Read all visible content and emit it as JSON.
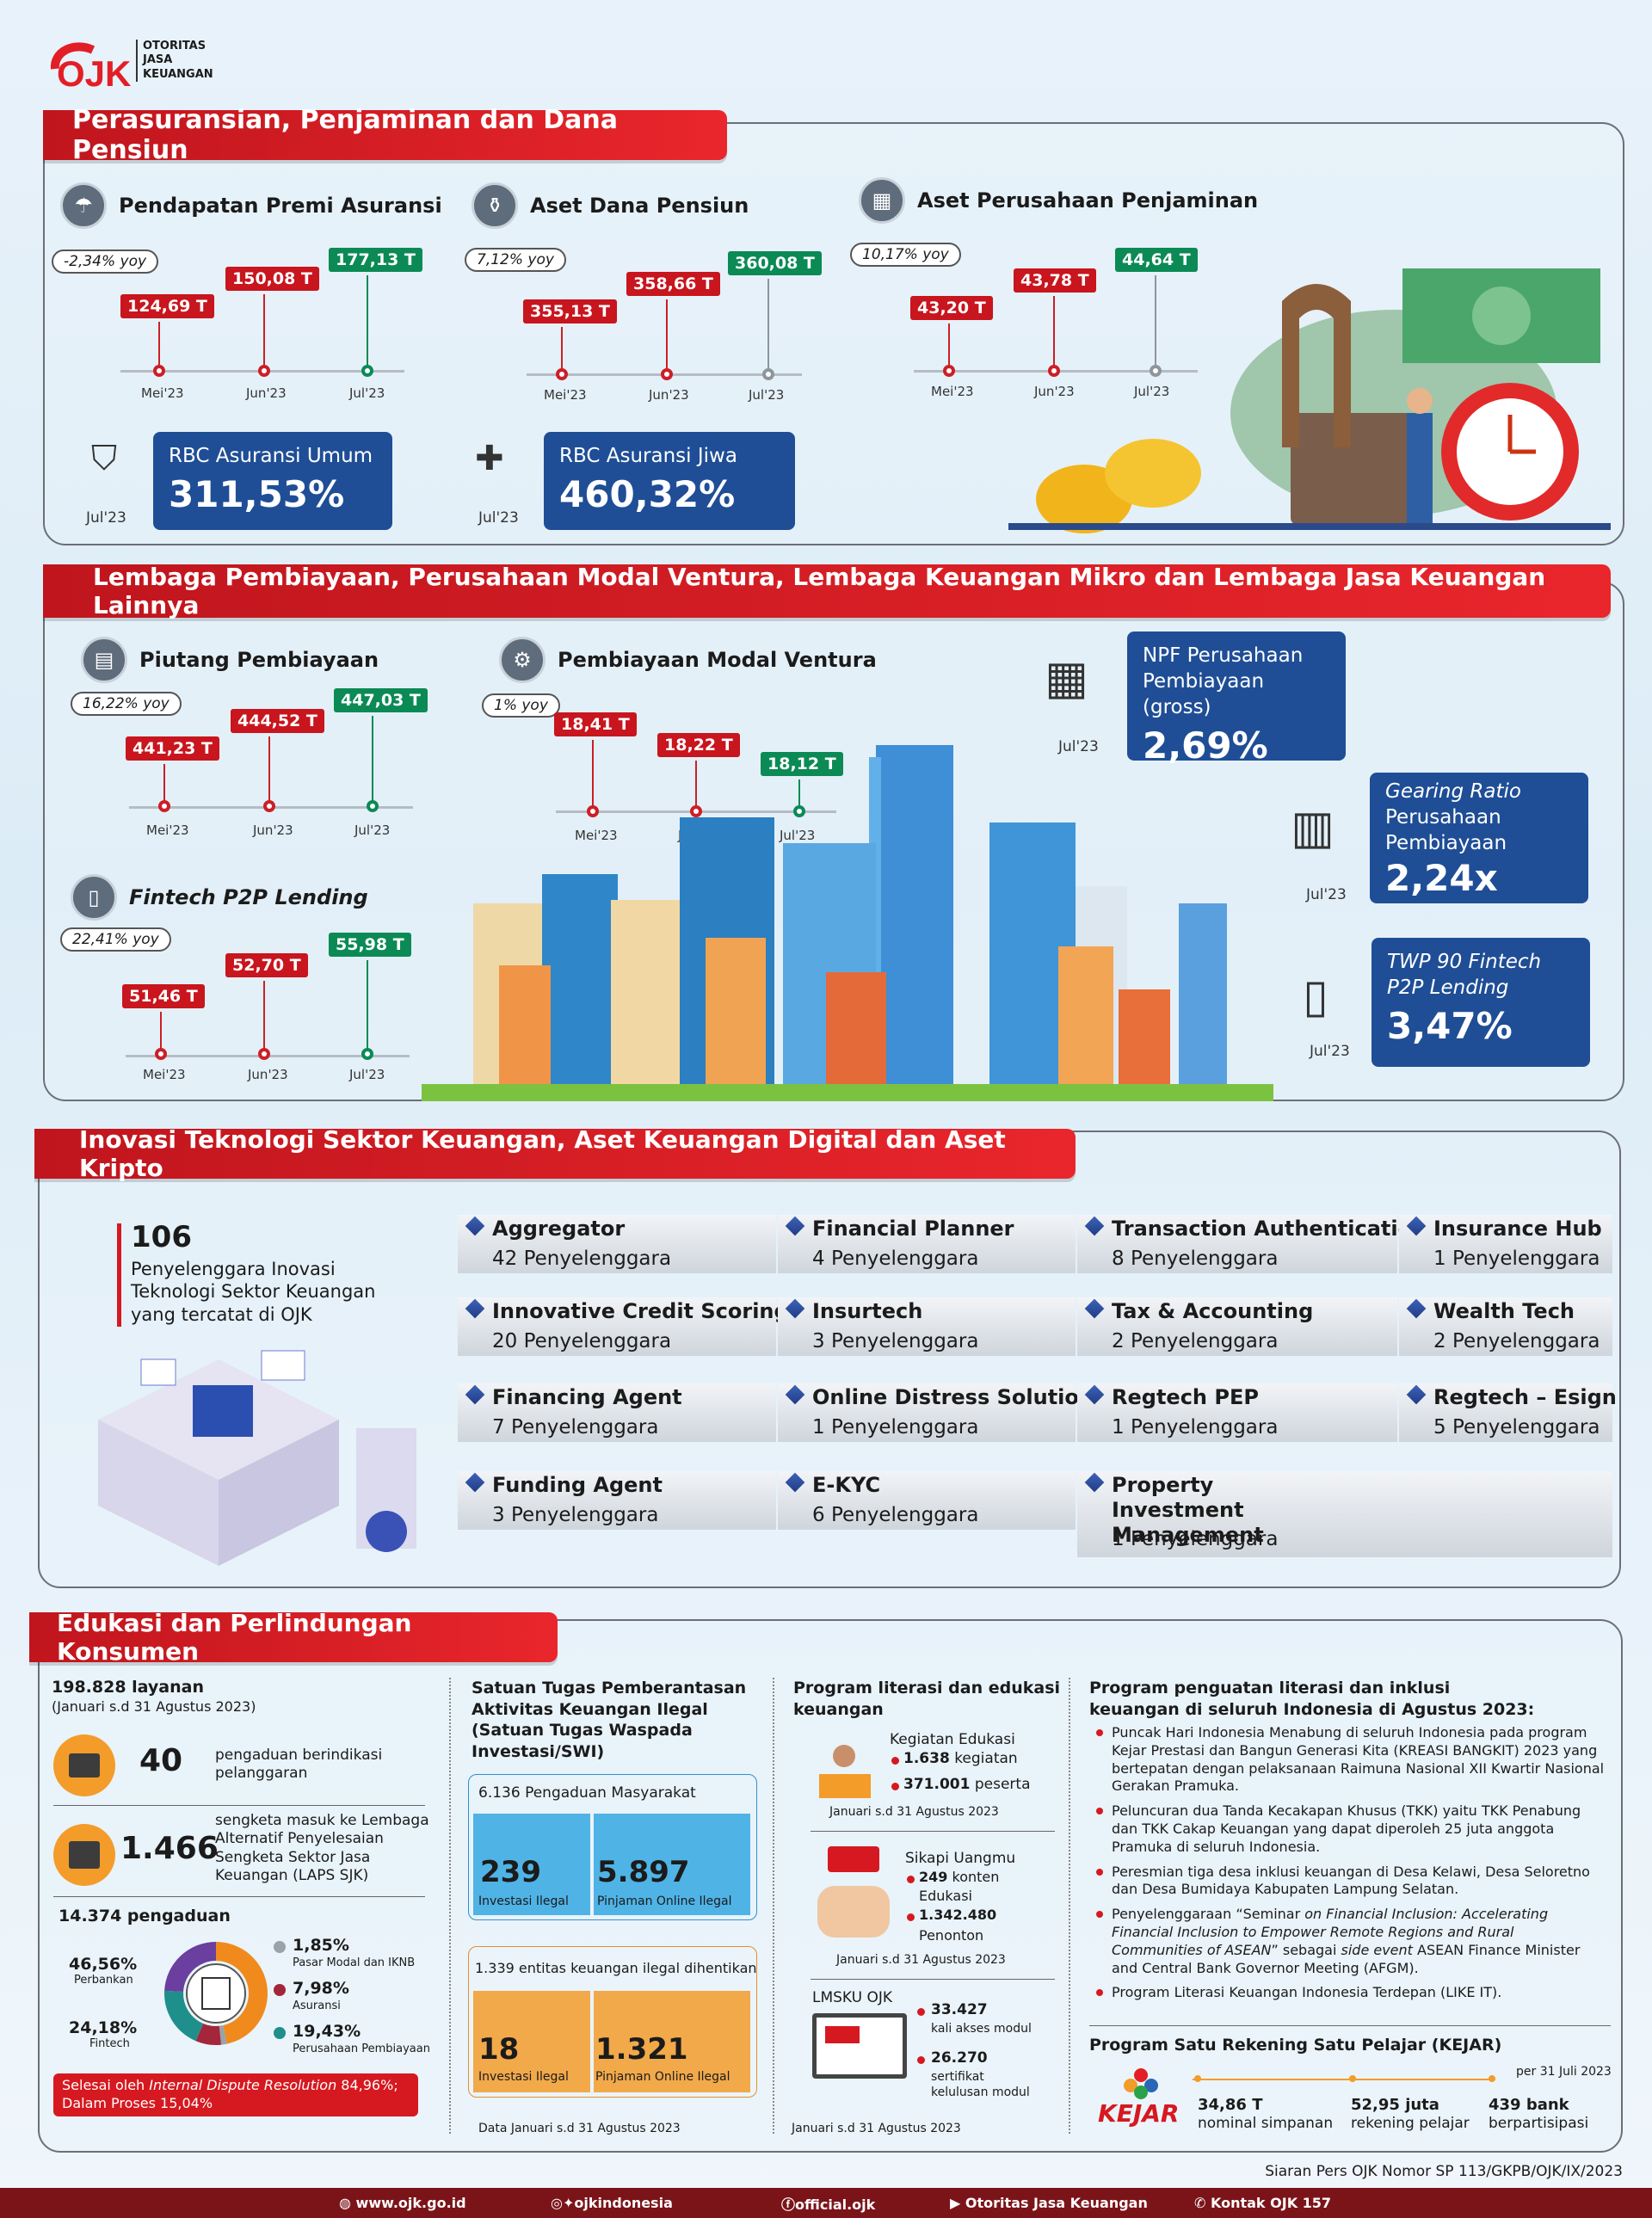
{
  "brand": {
    "logo": "OJK",
    "lines": [
      "OTORITAS",
      "JASA",
      "KEUANGAN"
    ]
  },
  "s1": {
    "title": "Perasuransian, Penjaminan dan Dana Pensiun",
    "premi": {
      "title": "Pendapatan Premi Asuransi",
      "yoy": "-2,34% yoy",
      "vals": [
        "124,69 T",
        "150,08 T",
        "177,13 T"
      ]
    },
    "dapen": {
      "title": "Aset Dana Pensiun",
      "yoy": "7,12% yoy",
      "vals": [
        "355,13 T",
        "358,66 T",
        "360,08 T"
      ]
    },
    "penjamin": {
      "title": "Aset Perusahaan Penjaminan",
      "yoy": "10,17% yoy",
      "vals": [
        "43,20 T",
        "43,78 T",
        "44,64 T"
      ]
    },
    "months": [
      "Mei'23",
      "Jun'23",
      "Jul'23"
    ],
    "rbc_umum": {
      "label": "RBC Asuransi Umum",
      "value": "311,53%",
      "period": "Jul'23"
    },
    "rbc_jiwa": {
      "label": "RBC Asuransi Jiwa",
      "value": "460,32%",
      "period": "Jul'23"
    }
  },
  "s2": {
    "title": "Lembaga Pembiayaan, Perusahaan Modal Ventura, Lembaga Keuangan Mikro dan Lembaga Jasa Keuangan Lainnya",
    "piutang": {
      "title": "Piutang Pembiayaan",
      "yoy": "16,22% yoy",
      "vals": [
        "441,23 T",
        "444,52 T",
        "447,03 T"
      ]
    },
    "ventura": {
      "title": "Pembiayaan Modal Ventura",
      "yoy": "1% yoy",
      "vals": [
        "18,41 T",
        "18,22 T",
        "18,12 T"
      ]
    },
    "p2p": {
      "title": "Fintech P2P Lending",
      "yoy": "22,41% yoy",
      "vals": [
        "51,46 T",
        "52,70 T",
        "55,98 T"
      ]
    },
    "npf": {
      "l1": "NPF Perusahaan",
      "l2": "Pembiayaan (gross)",
      "value": "2,69%",
      "period": "Jul'23"
    },
    "gearing": {
      "l1": "Gearing Ratio",
      "l2": "Perusahaan",
      "l3": "Pembiayaan",
      "value": "2,24x",
      "period": "Jul'23"
    },
    "twp": {
      "l1": "TWP 90 Fintech",
      "l2": "P2P Lending",
      "value": "3,47%",
      "period": "Jul'23"
    }
  },
  "s3": {
    "title": "Inovasi Teknologi Sektor Keuangan, Aset Keuangan Digital dan Aset Kripto",
    "total": "106",
    "total_desc": [
      "Penyelenggara Inovasi",
      "Teknologi Sektor Keuangan",
      "yang tercatat di OJK"
    ],
    "items": [
      {
        "name": "Aggregator",
        "count": "42 Penyelenggara"
      },
      {
        "name": "Financial Planner",
        "count": "4 Penyelenggara"
      },
      {
        "name": "Transaction Authentication",
        "count": "8 Penyelenggara"
      },
      {
        "name": "Insurance Hub",
        "count": "1 Penyelenggara"
      },
      {
        "name": "Innovative Credit Scoring",
        "count": "20 Penyelenggara"
      },
      {
        "name": "Insurtech",
        "count": "3 Penyelenggara"
      },
      {
        "name": "Tax & Accounting",
        "count": "2 Penyelenggara"
      },
      {
        "name": "Wealth Tech",
        "count": "2 Penyelenggara"
      },
      {
        "name": "Financing Agent",
        "count": "7 Penyelenggara"
      },
      {
        "name": "Online Distress Solution",
        "count": "1 Penyelenggara"
      },
      {
        "name": "Regtech PEP",
        "count": "1 Penyelenggara"
      },
      {
        "name": "Regtech – Esign",
        "count": "5 Penyelenggara"
      },
      {
        "name": "Funding Agent",
        "count": "3 Penyelenggara"
      },
      {
        "name": "E-KYC",
        "count": "6 Penyelenggara"
      },
      {
        "name": "Property Investment Management",
        "count": "1 Penyelenggara"
      }
    ]
  },
  "s4": {
    "title": "Edukasi dan Perlindungan Konsumen",
    "layanan": "198.828 layanan",
    "layanan_period": "(Januari s.d 31 Agustus 2023)",
    "c1": {
      "num": "40",
      "desc": "pengaduan berindikasi pelanggaran"
    },
    "c2": {
      "num": "1.466",
      "desc": "sengketa masuk ke Lembaga Alternatif Penyelesaian Sengketa Sektor Jasa Keuangan (LAPS SJK)"
    },
    "pengaduan": "14.374 pengaduan",
    "donut": [
      {
        "label": "Perbankan",
        "value": "46,56%",
        "color": "#f08a1c"
      },
      {
        "label": "Fintech",
        "value": "24,18%",
        "color": "#6a3fa0"
      },
      {
        "label": "Pasar Modal dan IKNB",
        "value": "1,85%",
        "color": "#9aa2aa"
      },
      {
        "label": "Asuransi",
        "value": "7,98%",
        "color": "#a3263a"
      },
      {
        "label": "Perusahaan Pembiayaan",
        "value": "19,43%",
        "color": "#1f8f8c"
      }
    ],
    "idr_a": "Selesai oleh ",
    "idr_b": "Internal Dispute Resolution",
    "idr_c": " 84,96%;",
    "idr_d": "Dalam Proses 15,04%",
    "swi": {
      "title": [
        "Satuan Tugas Pemberantasan",
        "Aktivitas Keuangan Ilegal",
        "(Satuan Tugas Waspada",
        "Investasi/SWI)"
      ],
      "pengaduan": "6.136 Pengaduan Masyarakat",
      "a1": {
        "num": "239",
        "lab": "Investasi Ilegal"
      },
      "a2": {
        "num": "5.897",
        "lab": "Pinjaman Online Ilegal"
      },
      "dihentikan": "1.339 entitas keuangan ilegal dihentikan",
      "b1": {
        "num": "18",
        "lab": "Investasi Ilegal"
      },
      "b2": {
        "num": "1.321",
        "lab": "Pinjaman Online Ilegal"
      },
      "note": "Data Januari s.d 31 Agustus 2023"
    },
    "lit": {
      "title": [
        "Program literasi dan edukasi",
        "keuangan"
      ],
      "kegiatan": "Kegiatan Edukasi",
      "k1": "1.638",
      "k1l": "kegiatan",
      "k2": "371.001",
      "k2l": "peserta",
      "kp": "Januari s.d 31 Agustus 2023",
      "sikapi": "Sikapi Uangmu",
      "s1": "249",
      "s1l": "konten",
      "s2": "Edukasi",
      "s3": "1.342.480",
      "s3l": "Penonton",
      "sp": "Januari s.d 31 Agustus 2023",
      "lmsku": "LMSKU OJK",
      "m1": "33.427",
      "m1l": "kali akses modul",
      "m2": "26.270",
      "m2l": "sertifikat",
      "m2l2": "kelulusan modul",
      "mp": "Januari s.d 31 Agustus 2023"
    },
    "prog": {
      "title": [
        "Program penguatan literasi dan inklusi",
        "keuangan di seluruh Indonesia di Agustus 2023:"
      ],
      "b1": "Puncak Hari Indonesia Menabung di seluruh Indonesia pada program Kejar Prestasi dan Bangun Generasi Kita (KREASI BANGKIT) 2023 yang bertepatan dengan pelaksanaan Raimuna Nasional XII Kwartir Nasional Gerakan Pramuka.",
      "b2": "Peluncuran dua Tanda Kecakapan Khusus (TKK) yaitu TKK Penabung dan TKK Cakap Keuangan yang dapat diperoleh 25 juta anggota Pramuka di seluruh Indonesia.",
      "b3": "Peresmian tiga desa inklusi keuangan di Desa Kelawi, Desa Seloretno dan Desa Bumidaya Kabupaten Lampung Selatan.",
      "b4a": "Penyelenggaraan “Seminar ",
      "b4b": "on Financial Inclusion: Accelerating Financial Inclusion to Empower Remote Regions and Rural Communities of ASEAN",
      "b4c": "” sebagai ",
      "b4d": "side event",
      "b4e": " ASEAN Finance Minister and Central Bank Governor Meeting (AFGM).",
      "b5": "Program Literasi Keuangan Indonesia Terdepan (LIKE IT)."
    },
    "kejar": {
      "title": "Program Satu Rekening Satu Pelajar (KEJAR)",
      "as_of": "per 31 Juli 2023",
      "logo": "KEJAR",
      "v1": "34,86 T",
      "l1": "nominal simpanan",
      "v2": "52,95 juta",
      "l2": "rekening pelajar",
      "v3": "439 bank",
      "l3": "berpartisipasi"
    }
  },
  "siaran": "Siaran Pers OJK Nomor SP 113/GKPB/OJK/IX/2023",
  "footer": {
    "web": "www.ojk.go.id",
    "social": "ojkindonesia",
    "fb": "official.ojk",
    "yt": "Otoritas Jasa Keuangan",
    "kontak": "Kontak OJK 157"
  }
}
